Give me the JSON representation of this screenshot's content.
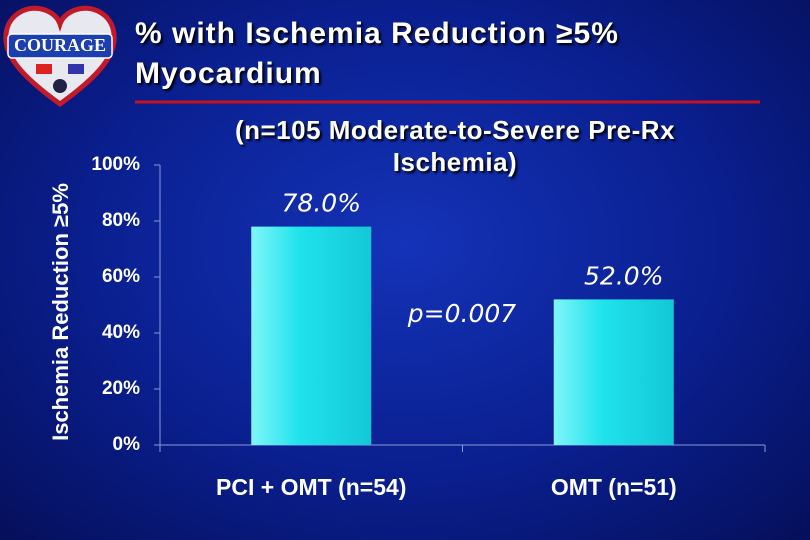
{
  "logo": {
    "text": "COURAGE"
  },
  "chart_data": {
    "type": "bar",
    "title": "% with Ischemia Reduction ≥5% Myocardium",
    "subtitle": "(n=105 Moderate-to-Severe Pre-Rx Ischemia)",
    "y_label": "Ischemia Reduction ≥5%",
    "categories": [
      "PCI + OMT (n=54)",
      "OMT (n=51)"
    ],
    "values": [
      78,
      52
    ],
    "value_labels": [
      "78.0%",
      "52.0%"
    ],
    "annotation": "p=0.007",
    "color": "#1fe3ec",
    "ylim": [
      0,
      100
    ],
    "yticks": [
      {
        "value": 0,
        "label": "0%"
      },
      {
        "value": 20,
        "label": "20%"
      },
      {
        "value": 40,
        "label": "40%"
      },
      {
        "value": 60,
        "label": "60%"
      },
      {
        "value": 80,
        "label": "80%"
      },
      {
        "value": 100,
        "label": "100%"
      }
    ],
    "grid": false
  }
}
